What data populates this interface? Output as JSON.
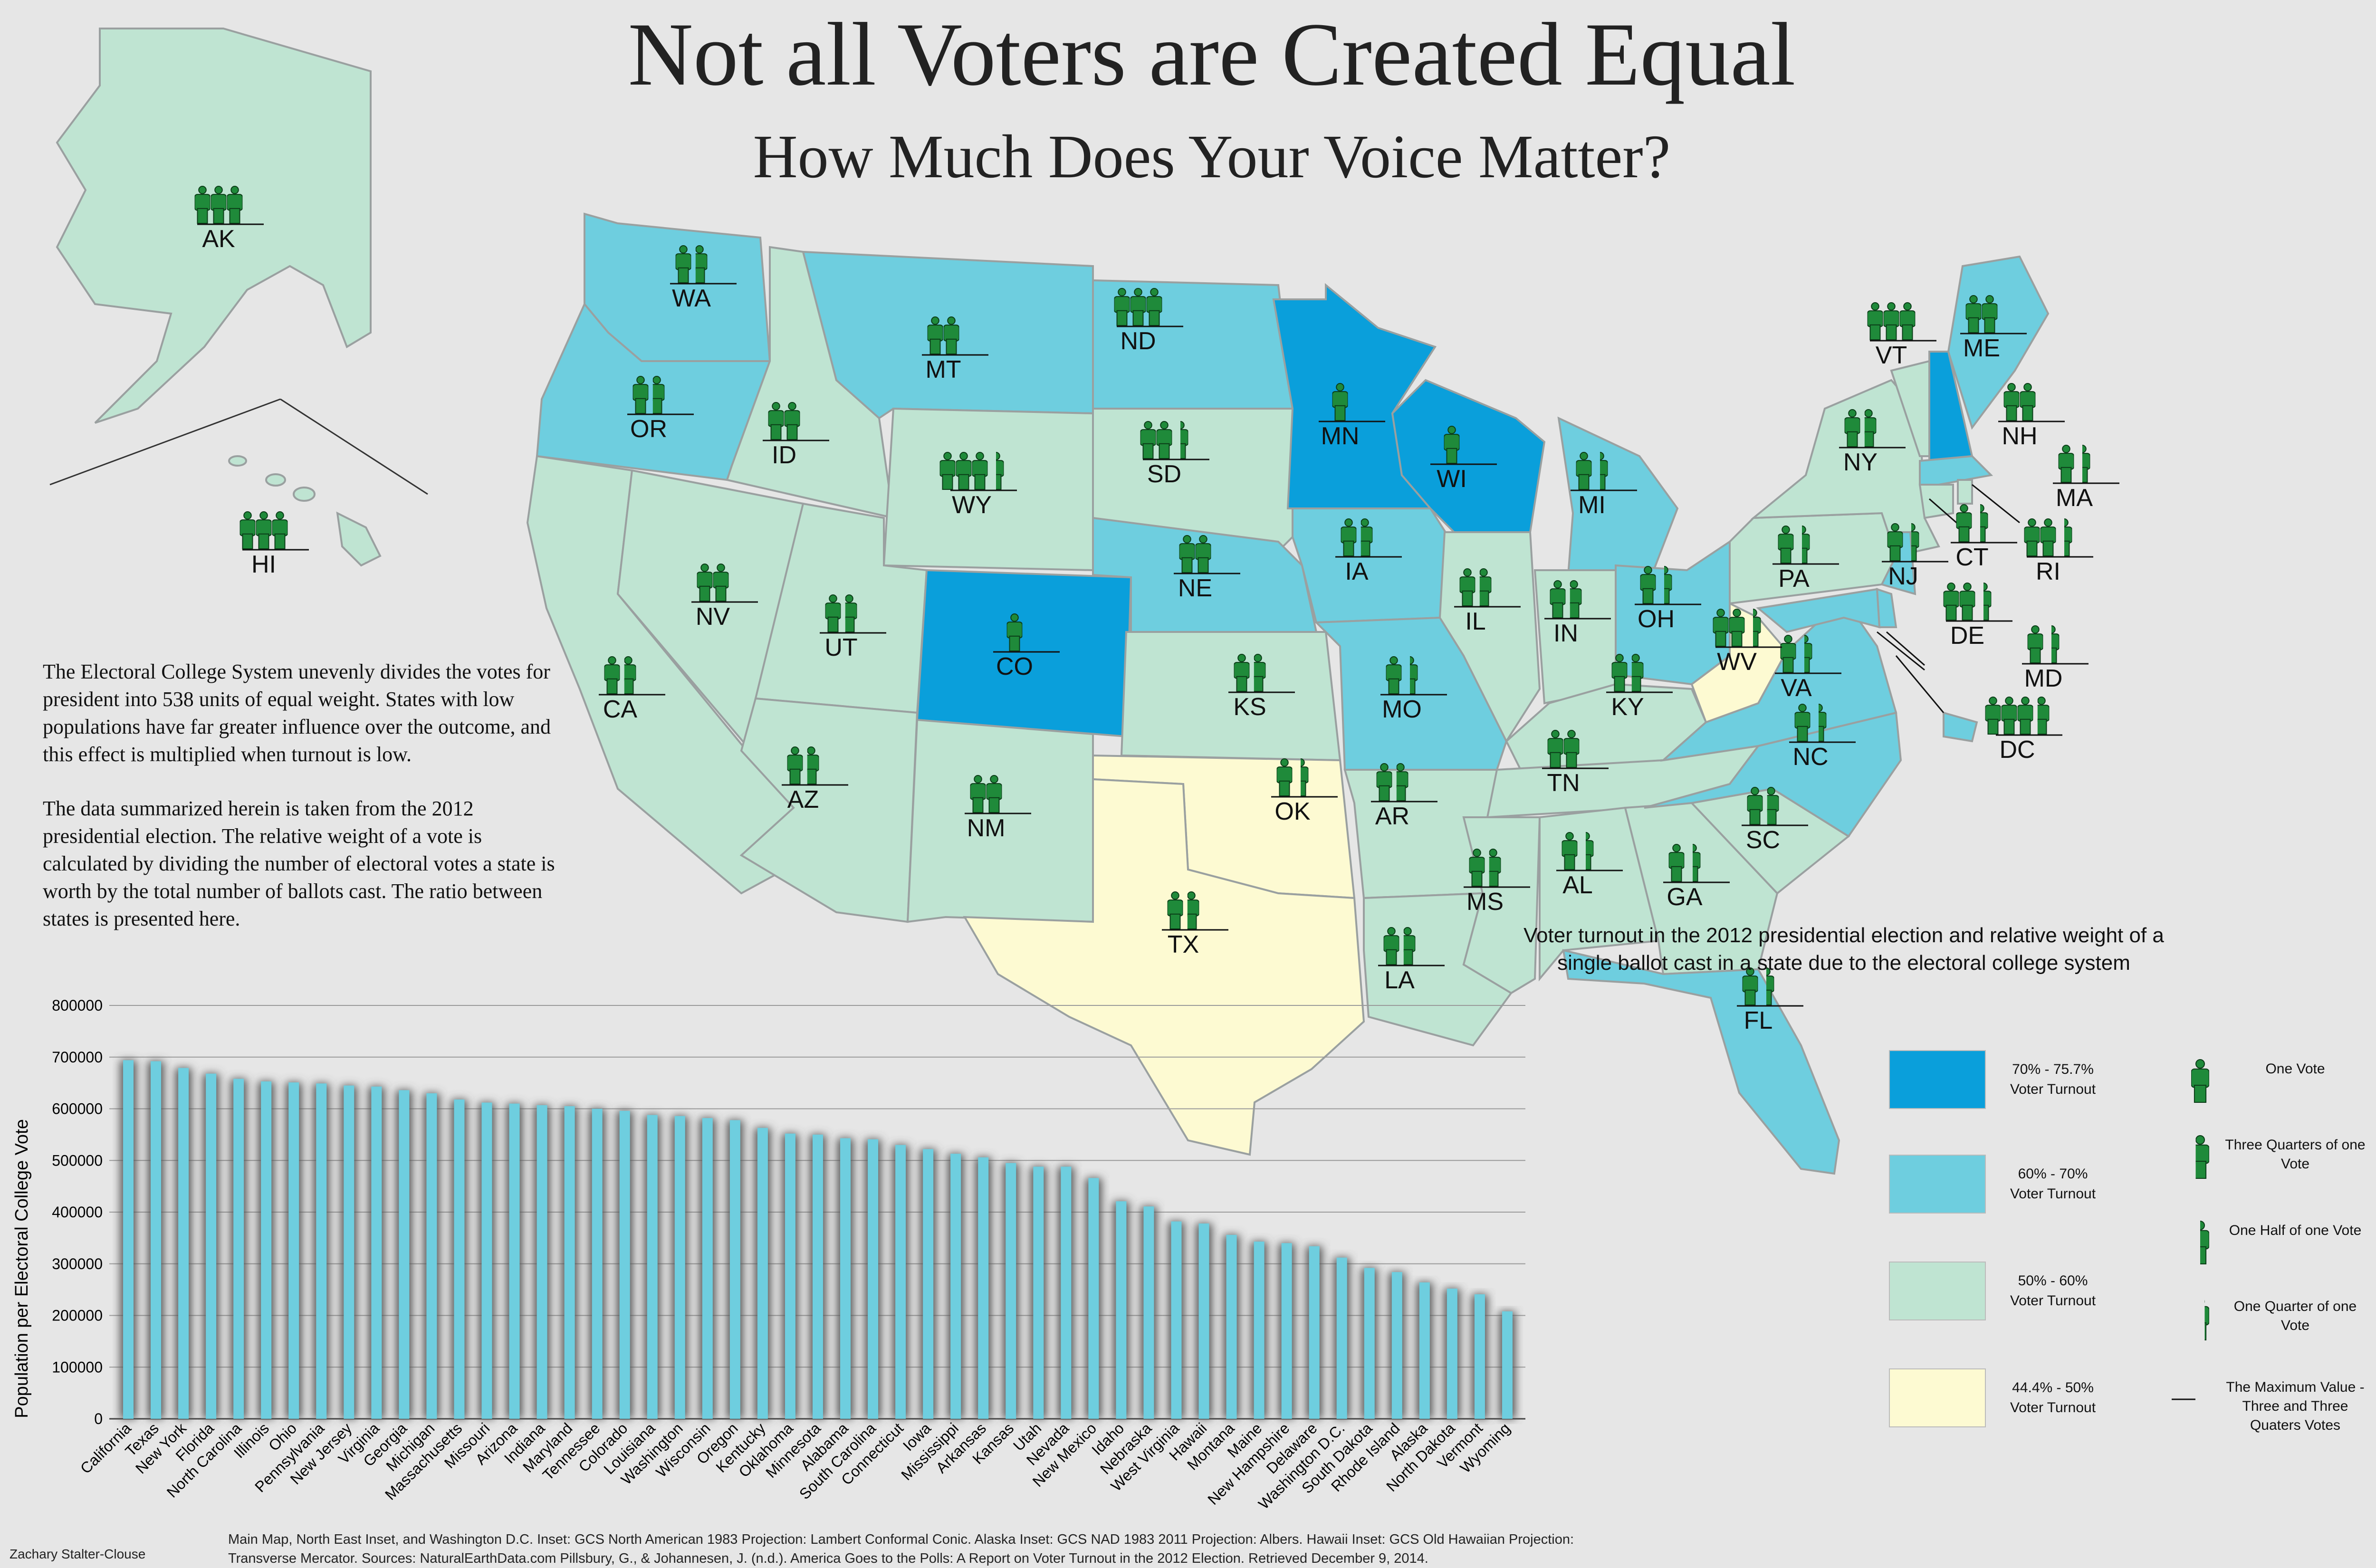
{
  "header": {
    "title": "Not all Voters are Created Equal",
    "subtitle": "How Much Does Your Voice Matter?"
  },
  "intro": {
    "paragraph1": "The Electoral College System unevenly divides the votes for president into 538 units of equal weight. States with low populations have far greater influence over the outcome, and this effect is multiplied when turnout is low.",
    "paragraph2": "The data summarized herein is taken from the 2012 presidential election.  The relative weight of a vote is calculated by dividing the number of electoral votes a state is worth by the total number of ballots cast.  The ratio between states is presented here."
  },
  "colors": {
    "background": "#e6e6e6",
    "turnout_70_757": "#0a9fdb",
    "turnout_60_70": "#6ecedf",
    "turnout_50_60": "#bfe4d2",
    "turnout_444_50": "#fdfad2",
    "state_border": "#9aa0a0",
    "vote_icon": "#1f8a3a",
    "bar_fill": "#6ecedf"
  },
  "map": {
    "states": [
      {
        "abbr": "AK",
        "votes": "3",
        "band": "50"
      },
      {
        "abbr": "HI",
        "votes": "3",
        "band": "50"
      },
      {
        "abbr": "WA",
        "votes": "1.75",
        "band": "60"
      },
      {
        "abbr": "OR",
        "votes": "1.75",
        "band": "60"
      },
      {
        "abbr": "CA",
        "votes": "1.75",
        "band": "50"
      },
      {
        "abbr": "ID",
        "votes": "2",
        "band": "50"
      },
      {
        "abbr": "NV",
        "votes": "2",
        "band": "50"
      },
      {
        "abbr": "MT",
        "votes": "2",
        "band": "60"
      },
      {
        "abbr": "WY",
        "votes": "3.5",
        "band": "50"
      },
      {
        "abbr": "UT",
        "votes": "1.75",
        "band": "50"
      },
      {
        "abbr": "AZ",
        "votes": "1.75",
        "band": "50"
      },
      {
        "abbr": "CO",
        "votes": "1",
        "band": "70"
      },
      {
        "abbr": "NM",
        "votes": "2",
        "band": "50"
      },
      {
        "abbr": "ND",
        "votes": "3",
        "band": "60"
      },
      {
        "abbr": "SD",
        "votes": "2.5",
        "band": "50"
      },
      {
        "abbr": "NE",
        "votes": "2",
        "band": "60"
      },
      {
        "abbr": "KS",
        "votes": "1.75",
        "band": "50"
      },
      {
        "abbr": "OK",
        "votes": "1.5",
        "band": "44"
      },
      {
        "abbr": "TX",
        "votes": "1.75",
        "band": "44"
      },
      {
        "abbr": "MN",
        "votes": "1",
        "band": "70"
      },
      {
        "abbr": "IA",
        "votes": "1.75",
        "band": "60"
      },
      {
        "abbr": "MO",
        "votes": "1.5",
        "band": "60"
      },
      {
        "abbr": "AR",
        "votes": "1.75",
        "band": "50"
      },
      {
        "abbr": "LA",
        "votes": "1.75",
        "band": "50"
      },
      {
        "abbr": "WI",
        "votes": "1",
        "band": "70"
      },
      {
        "abbr": "IL",
        "votes": "1.75",
        "band": "50"
      },
      {
        "abbr": "MI",
        "votes": "1.5",
        "band": "60"
      },
      {
        "abbr": "IN",
        "votes": "1.75",
        "band": "50"
      },
      {
        "abbr": "OH",
        "votes": "1.5",
        "band": "60"
      },
      {
        "abbr": "KY",
        "votes": "1.75",
        "band": "50"
      },
      {
        "abbr": "TN",
        "votes": "2",
        "band": "50"
      },
      {
        "abbr": "MS",
        "votes": "1.75",
        "band": "50"
      },
      {
        "abbr": "AL",
        "votes": "1.5",
        "band": "50"
      },
      {
        "abbr": "GA",
        "votes": "1.5",
        "band": "50"
      },
      {
        "abbr": "FL",
        "votes": "1.5",
        "band": "60"
      },
      {
        "abbr": "SC",
        "votes": "1.75",
        "band": "50"
      },
      {
        "abbr": "NC",
        "votes": "1.5",
        "band": "60"
      },
      {
        "abbr": "VA",
        "votes": "1.5",
        "band": "60"
      },
      {
        "abbr": "WV",
        "votes": "2.5",
        "band": "44"
      },
      {
        "abbr": "PA",
        "votes": "1.5",
        "band": "50"
      },
      {
        "abbr": "NY",
        "votes": "1.75",
        "band": "50"
      },
      {
        "abbr": "VT",
        "votes": "3",
        "band": "50"
      },
      {
        "abbr": "NH",
        "votes": "2",
        "band": "70"
      },
      {
        "abbr": "ME",
        "votes": "2",
        "band": "60"
      },
      {
        "abbr": "MA",
        "votes": "1.5",
        "band": "60"
      },
      {
        "abbr": "RI",
        "votes": "2.5",
        "band": "50"
      },
      {
        "abbr": "CT",
        "votes": "1.5",
        "band": "50"
      },
      {
        "abbr": "NJ",
        "votes": "1.5",
        "band": "60"
      },
      {
        "abbr": "DE",
        "votes": "2.5",
        "band": "60"
      },
      {
        "abbr": "MD",
        "votes": "1.5",
        "band": "60"
      },
      {
        "abbr": "DC",
        "votes": "3.75",
        "band": "60"
      }
    ]
  },
  "legend": {
    "title": "Voter turnout in the 2012 presidential election and relative weight of a  single ballot cast in a state due to the electoral college system",
    "bands": [
      {
        "label": "70% - 75.7%\nVoter Turnout",
        "color": "#0a9fdb"
      },
      {
        "label": "60% - 70%\nVoter Turnout",
        "color": "#6ecedf"
      },
      {
        "label": "50% - 60%\nVoter Turnout",
        "color": "#bfe4d2"
      },
      {
        "label": "44.4% -  50%\nVoter Turnout",
        "color": "#fdfad2"
      }
    ],
    "icons": [
      {
        "icon": "one-vote-icon",
        "label": "One Vote",
        "fraction": 1
      },
      {
        "icon": "three-quarter-vote-icon",
        "label": "Three Quarters of one Vote",
        "fraction": 0.75
      },
      {
        "icon": "half-vote-icon",
        "label": "One Half of one Vote",
        "fraction": 0.5
      },
      {
        "icon": "quarter-vote-icon",
        "label": "One Quarter of one Vote",
        "fraction": 0.25
      },
      {
        "icon": "max-value-line-icon",
        "label": "The Maximum Value - Three and Three Quaters Votes",
        "fraction": 0
      }
    ]
  },
  "chart_data": {
    "type": "bar",
    "title": "",
    "xlabel": "",
    "ylabel": "Population per Electoral College Vote",
    "ylim": [
      0,
      800000
    ],
    "yticks": [
      "0",
      "100000",
      "200000",
      "300000",
      "400000",
      "500000",
      "600000",
      "700000",
      "800000"
    ],
    "grid": true,
    "categories": [
      "California",
      "Texas",
      "New York",
      "Florida",
      "North Carolina",
      "Illinois",
      "Ohio",
      "Pennsylvania",
      "New Jersey",
      "Virginia",
      "Georgia",
      "Michigan",
      "Massachusetts",
      "Missouri",
      "Arizona",
      "Indiana",
      "Maryland",
      "Tennessee",
      "Colorado",
      "Louisiana",
      "Washington",
      "Wisconsin",
      "Oregon",
      "Kentucky",
      "Oklahoma",
      "Minnesota",
      "Alabama",
      "South Carolina",
      "Connecticut",
      "Iowa",
      "Mississippi",
      "Arkansas",
      "Kansas",
      "Utah",
      "Nevada",
      "New Mexico",
      "Idaho",
      "Nebraska",
      "West Virginia",
      "Hawaii",
      "Montana",
      "Maine",
      "New Hampshire",
      "Delaware",
      "Washington D.C.",
      "South Dakota",
      "Rhode Island",
      "Alaska",
      "North Dakota",
      "Vermont",
      "Wyoming"
    ],
    "values": [
      694000,
      692000,
      679000,
      668000,
      658000,
      653000,
      651000,
      649000,
      645000,
      643000,
      636000,
      630000,
      618000,
      612000,
      610000,
      607000,
      605000,
      600000,
      596000,
      588000,
      586000,
      582000,
      578000,
      563000,
      552000,
      550000,
      543000,
      541000,
      530000,
      522000,
      513000,
      506000,
      495000,
      488000,
      488000,
      466000,
      421000,
      411000,
      382000,
      378000,
      356000,
      343000,
      340000,
      334000,
      312000,
      292000,
      284000,
      264000,
      252000,
      241000,
      208000
    ]
  },
  "footer": {
    "credit": "Zachary Stalter-Clouse",
    "sources": "Main Map, North East Inset, and Washington D.C. Inset: GCS North American 1983 Projection: Lambert Conformal Conic.  Alaska Inset:  GCS NAD 1983 2011 Projection: Albers.  Hawaii Inset:  GCS Old Hawaiian Projection: Transverse Mercator.  Sources:  NaturalEarthData.com  Pillsbury, G., & Johannesen, J. (n.d.). America Goes to the Polls: A Report on Voter Turnout in the 2012 Election. Retrieved December 9, 2014."
  }
}
